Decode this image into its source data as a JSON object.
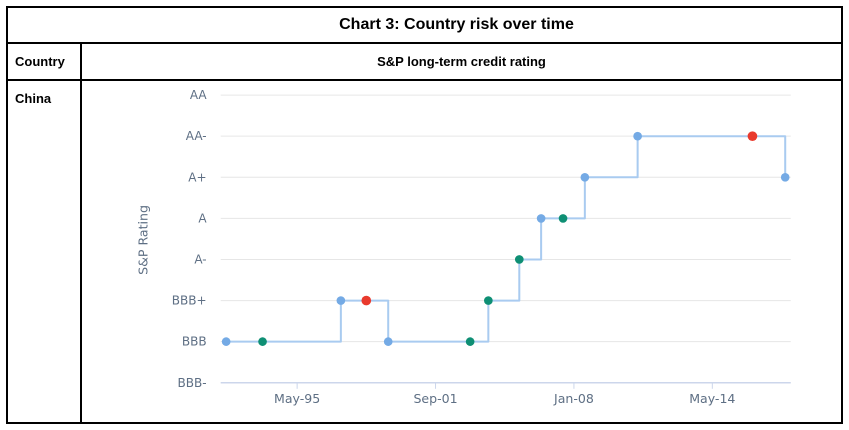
{
  "title": "Chart 3: Country risk over time",
  "table": {
    "header": {
      "country_col": "Country",
      "rating_col": "S&P long-term credit rating"
    },
    "row": {
      "country": "China"
    }
  },
  "chart_data": {
    "type": "line",
    "subtype": "step-after",
    "title": "",
    "xlabel": "",
    "ylabel": "S&P Rating",
    "y_categories": [
      "BBB-",
      "BBB",
      "BBB+",
      "A-",
      "A",
      "A+",
      "AA-",
      "AA"
    ],
    "x_axis": {
      "tick_labels": [
        "May-95",
        "Sep-01",
        "Jan-08",
        "May-14"
      ],
      "tick_months": [
        64,
        140,
        216,
        292
      ]
    },
    "grid": "horizontal-only",
    "legend": "none",
    "series": [
      {
        "name": "China S&P long-term credit rating",
        "points": [
          {
            "date": "Feb-92",
            "month": 25,
            "rating": "BBB",
            "marker": "blue"
          },
          {
            "date": "Oct-93",
            "month": 45,
            "rating": "BBB",
            "marker": "teal"
          },
          {
            "date": "May-97",
            "month": 88,
            "rating": "BBB+",
            "marker": "blue"
          },
          {
            "date": "Jul-98",
            "month": 102,
            "rating": "BBB+",
            "marker": "red"
          },
          {
            "date": "Jul-99",
            "month": 114,
            "rating": "BBB",
            "marker": "blue"
          },
          {
            "date": "Apr-03",
            "month": 159,
            "rating": "BBB",
            "marker": "teal"
          },
          {
            "date": "Feb-04",
            "month": 169,
            "rating": "BBB+",
            "marker": "teal"
          },
          {
            "date": "Jul-05",
            "month": 186,
            "rating": "A-",
            "marker": "teal"
          },
          {
            "date": "Jul-06",
            "month": 198,
            "rating": "A",
            "marker": "blue"
          },
          {
            "date": "Jul-07",
            "month": 210,
            "rating": "A",
            "marker": "teal"
          },
          {
            "date": "Jul-08",
            "month": 222,
            "rating": "A+",
            "marker": "blue"
          },
          {
            "date": "Dec-10",
            "month": 251,
            "rating": "AA-",
            "marker": "blue"
          },
          {
            "date": "Mar-16",
            "month": 314,
            "rating": "AA-",
            "marker": "red"
          },
          {
            "date": "Sep-17",
            "month": 332,
            "rating": "A+",
            "marker": "blue"
          }
        ]
      }
    ],
    "colors": {
      "line": "#a9cbf0",
      "marker_blue": "#74aae5",
      "marker_teal": "#0e8f74",
      "marker_red": "#e93a2d",
      "grid": "#e6e6e6",
      "axis": "#ccd6eb",
      "label_text": "#5e6f84"
    }
  }
}
